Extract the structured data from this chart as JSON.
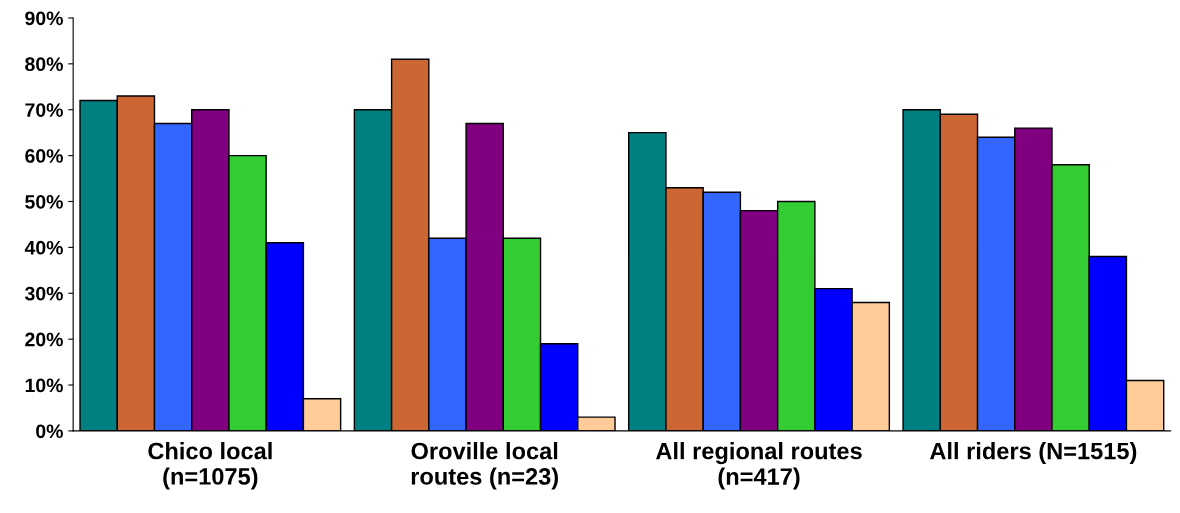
{
  "chart_data": {
    "type": "bar",
    "categories": [
      "Chico local\n(n=1075)",
      "Oroville local\nroutes (n=23)",
      "All regional routes\n(n=417)",
      "All riders (N=1515)"
    ],
    "series": [
      {
        "color": "#008080",
        "values": [
          72,
          70,
          65,
          70
        ]
      },
      {
        "color": "#cc6633",
        "values": [
          73,
          81,
          53,
          69
        ]
      },
      {
        "color": "#3366ff",
        "values": [
          67,
          42,
          52,
          64
        ]
      },
      {
        "color": "#800080",
        "values": [
          70,
          67,
          48,
          66
        ]
      },
      {
        "color": "#33cc33",
        "values": [
          60,
          42,
          50,
          58
        ]
      },
      {
        "color": "#0000ff",
        "values": [
          41,
          19,
          31,
          38
        ]
      },
      {
        "color": "#ffcc99",
        "values": [
          7,
          3,
          28,
          11
        ]
      }
    ],
    "ylim": [
      0,
      90
    ],
    "yticks": [
      {
        "value": 0,
        "label": "0%"
      },
      {
        "value": 10,
        "label": "10%"
      },
      {
        "value": 20,
        "label": "20%"
      },
      {
        "value": 30,
        "label": "30%"
      },
      {
        "value": 40,
        "label": "40%"
      },
      {
        "value": 50,
        "label": "50%"
      },
      {
        "value": 60,
        "label": "60%"
      },
      {
        "value": 70,
        "label": "70%"
      },
      {
        "value": 80,
        "label": "80%"
      },
      {
        "value": 90,
        "label": "90%"
      }
    ],
    "grid": false,
    "legend": false
  }
}
